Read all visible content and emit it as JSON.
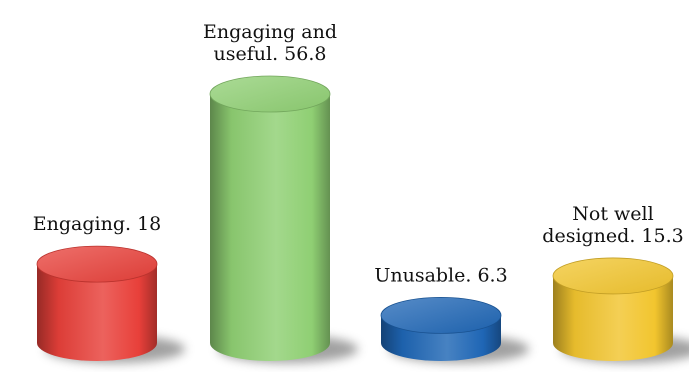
{
  "chart_data": {
    "type": "bar",
    "style": "3d-cylinder",
    "categories": [
      "Engaging",
      "Engaging and useful",
      "Unusable",
      "Not well designed"
    ],
    "values": [
      18,
      56.8,
      6.3,
      15.3
    ],
    "data_labels": [
      [
        "Engaging. 18"
      ],
      [
        "Engaging and",
        "useful. 56.8"
      ],
      [
        "Unusable. 6.3"
      ],
      [
        "Not well",
        "designed. 15.3"
      ]
    ],
    "colors": [
      "#e8403a",
      "#8fcf73",
      "#1f66b5",
      "#f2c52e"
    ],
    "title": "",
    "xlabel": "",
    "ylabel": "",
    "ylim": [
      0,
      56.8
    ],
    "grid": false,
    "legend": "none"
  }
}
